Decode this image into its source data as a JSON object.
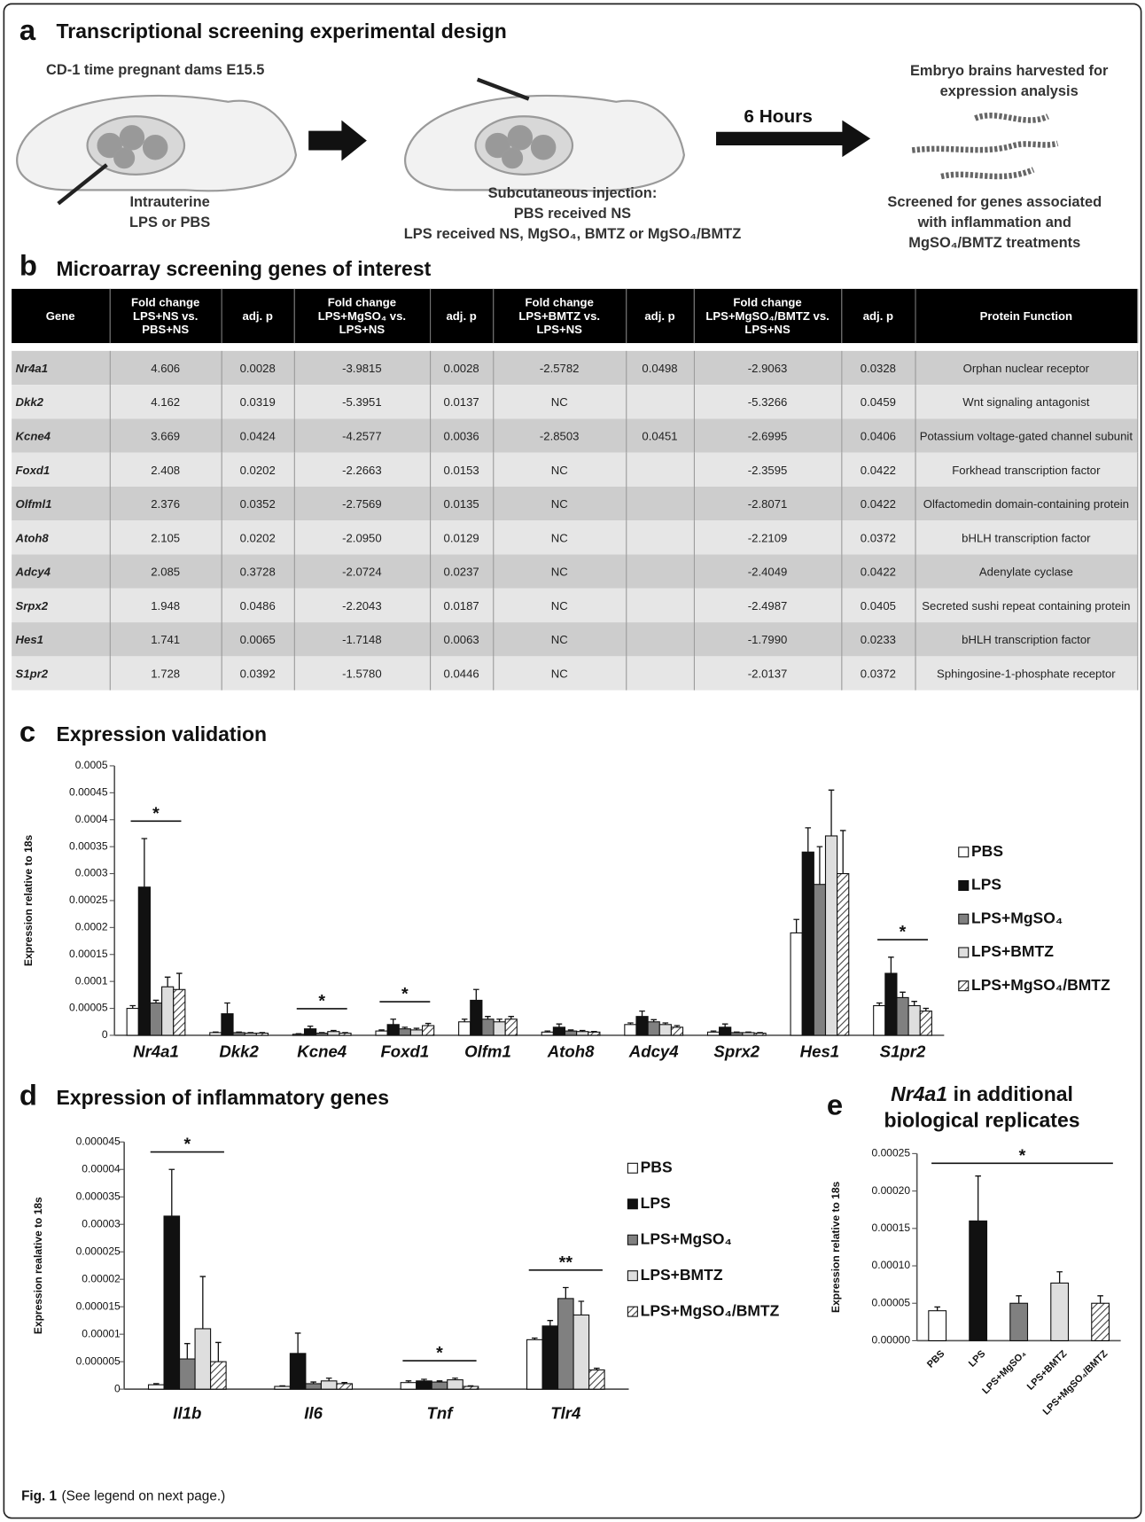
{
  "figure": {
    "panel_a": {
      "label": "a",
      "title": "Transcriptional screening experimental design",
      "dams": "CD-1 time pregnant dams E15.5",
      "route": [
        "Intrauterine",
        "LPS or PBS"
      ],
      "injection": [
        "Subcutaneous injection:",
        "PBS received NS",
        "LPS received NS, MgSO₄, BMTZ or MgSO₄/BMTZ"
      ],
      "interval": "6 Hours",
      "harvest": [
        "Embryo brains harvested for",
        "expression analysis"
      ],
      "screen": [
        "Screened for genes associated",
        "with inflammation and",
        "MgSO₄/BMTZ treatments"
      ]
    },
    "panel_b": {
      "label": "b",
      "title": "Microarray screening genes of interest",
      "table": {
        "header": [
          "Gene",
          "Fold change LPS+NS vs. PBS+NS",
          "adj. p",
          "Fold change LPS+MgSO₄ vs. LPS+NS",
          "adj. p",
          "Fold change LPS+BMTZ vs. LPS+NS",
          "adj. p",
          "Fold change LPS+MgSO₄/BMTZ vs. LPS+NS",
          "adj. p",
          "Protein Function"
        ],
        "rows": [
          [
            "Nr4a1",
            "4.606",
            "0.0028",
            "-3.9815",
            "0.0028",
            "-2.5782",
            "0.0498",
            "-2.9063",
            "0.0328",
            "Orphan nuclear receptor"
          ],
          [
            "Dkk2",
            "4.162",
            "0.0319",
            "-5.3951",
            "0.0137",
            "NC",
            null,
            "-5.3266",
            "0.0459",
            "Wnt signaling antagonist"
          ],
          [
            "Kcne4",
            "3.669",
            "0.0424",
            "-4.2577",
            "0.0036",
            "-2.8503",
            "0.0451",
            "-2.6995",
            "0.0406",
            "Potassium voltage-gated channel subunit"
          ],
          [
            "Foxd1",
            "2.408",
            "0.0202",
            "-2.2663",
            "0.0153",
            "NC",
            null,
            "-2.3595",
            "0.0422",
            "Forkhead transcription factor"
          ],
          [
            "Olfml1",
            "2.376",
            "0.0352",
            "-2.7569",
            "0.0135",
            "NC",
            null,
            "-2.8071",
            "0.0422",
            "Olfactomedin domain-containing protein"
          ],
          [
            "Atoh8",
            "2.105",
            "0.0202",
            "-2.0950",
            "0.0129",
            "NC",
            null,
            "-2.2109",
            "0.0372",
            "bHLH transcription factor"
          ],
          [
            "Adcy4",
            "2.085",
            "0.3728",
            "-2.0724",
            "0.0237",
            "NC",
            null,
            "-2.4049",
            "0.0422",
            "Adenylate cyclase"
          ],
          [
            "Srpx2",
            "1.948",
            "0.0486",
            "-2.2043",
            "0.0187",
            "NC",
            null,
            "-2.4987",
            "0.0405",
            "Secreted sushi repeat containing protein"
          ],
          [
            "Hes1",
            "1.741",
            "0.0065",
            "-1.7148",
            "0.0063",
            "NC",
            null,
            "-1.7990",
            "0.0233",
            "bHLH transcription factor"
          ],
          [
            "S1pr2",
            "1.728",
            "0.0392",
            "-1.5780",
            "0.0446",
            "NC",
            null,
            "-2.0137",
            "0.0372",
            "Sphingosine-1-phosphate  receptor"
          ]
        ]
      }
    },
    "caption": {
      "label": "Fig. 1",
      "text": "(See legend on next page.)"
    }
  },
  "chart_data": [
    {
      "panel": "c",
      "type": "bar",
      "title": "Expression validation",
      "y_label": "Expression relative to 18s",
      "categories": [
        "Nr4a1",
        "Dkk2",
        "Kcne4",
        "Foxd1",
        "Olfm1",
        "Atoh8",
        "Adcy4",
        "Sprx2",
        "Hes1",
        "S1pr2"
      ],
      "series": [
        {
          "name": "PBS",
          "color": "#ffffff",
          "values": [
            5e-05,
            5e-06,
            2e-06,
            8e-06,
            2.5e-05,
            6e-06,
            2e-05,
            6e-06,
            0.00019,
            5.5e-05
          ],
          "errors": [
            5e-06,
            1e-06,
            1e-06,
            2e-06,
            5e-06,
            2e-06,
            3e-06,
            2e-06,
            2.5e-05,
            5e-06
          ]
        },
        {
          "name": "LPS",
          "color": "#111111",
          "values": [
            0.000275,
            4e-05,
            1.2e-05,
            2e-05,
            6.5e-05,
            1.5e-05,
            3.5e-05,
            1.5e-05,
            0.00034,
            0.000115
          ],
          "errors": [
            9e-05,
            2e-05,
            5e-06,
            1e-05,
            2e-05,
            6e-06,
            1e-05,
            6e-06,
            4.5e-05,
            3e-05
          ]
        },
        {
          "name": "LPS+MgSO₄",
          "color": "#808080",
          "values": [
            6e-05,
            5e-06,
            4e-06,
            1.2e-05,
            3e-05,
            8e-06,
            2.5e-05,
            5e-06,
            0.00028,
            7e-05
          ],
          "errors": [
            5e-06,
            1e-06,
            1e-06,
            3e-06,
            5e-06,
            2e-06,
            4e-06,
            1e-06,
            7e-05,
            1e-05
          ]
        },
        {
          "name": "LPS+BMTZ",
          "color": "#dedede",
          "values": [
            9e-05,
            4e-06,
            7e-06,
            1e-05,
            2.5e-05,
            7e-06,
            2e-05,
            5e-06,
            0.00037,
            5.5e-05
          ],
          "errors": [
            1.8e-05,
            1e-06,
            2e-06,
            3e-06,
            5e-06,
            2e-06,
            3e-06,
            1e-06,
            8.5e-05,
            8e-06
          ]
        },
        {
          "name": "LPS+MgSO₄/BMTZ",
          "color": "#ffffff",
          "hatched": true,
          "values": [
            8.5e-05,
            4e-06,
            4e-06,
            1.8e-05,
            3e-05,
            6e-06,
            1.5e-05,
            4e-06,
            0.0003,
            4.5e-05
          ],
          "errors": [
            3e-05,
            1e-06,
            1e-06,
            4e-06,
            5e-06,
            1e-06,
            3e-06,
            1e-06,
            8e-05,
            5e-06
          ]
        }
      ],
      "ylim": [
        0,
        0.0005
      ],
      "yticks": [
        0,
        5e-05,
        0.0001,
        0.00015,
        0.0002,
        0.00025,
        0.0003,
        0.00035,
        0.0004,
        0.00045,
        0.0005
      ],
      "legend": "right",
      "significance": [
        {
          "text": "*",
          "category": "Nr4a1"
        },
        {
          "text": "*",
          "category": "Kcne4"
        },
        {
          "text": "*",
          "category": "Foxd1"
        },
        {
          "text": "*",
          "category": "S1pr2"
        }
      ]
    },
    {
      "panel": "d",
      "type": "bar",
      "title": "Expression of inflammatory genes",
      "y_label": "Expression realative to 18s",
      "categories": [
        "Il1b",
        "Il6",
        "Tnf",
        "Tlr4"
      ],
      "series": [
        {
          "name": "PBS",
          "color": "#ffffff",
          "values": [
            8e-07,
            5e-07,
            1.2e-06,
            9e-06
          ],
          "errors": [
            2e-07,
            1e-07,
            3e-07,
            3e-07
          ]
        },
        {
          "name": "LPS",
          "color": "#111111",
          "values": [
            3.15e-05,
            6.5e-06,
            1.5e-06,
            1.15e-05
          ],
          "errors": [
            8.5e-06,
            3.7e-06,
            3e-07,
            1e-06
          ]
        },
        {
          "name": "LPS+MgSO₄",
          "color": "#808080",
          "values": [
            5.5e-06,
            1e-06,
            1.3e-06,
            1.65e-05
          ],
          "errors": [
            2.8e-06,
            3e-07,
            2e-07,
            2e-06
          ]
        },
        {
          "name": "LPS+BMTZ",
          "color": "#dedede",
          "values": [
            1.1e-05,
            1.5e-06,
            1.7e-06,
            1.35e-05
          ],
          "errors": [
            9.5e-06,
            5e-07,
            3e-07,
            2.5e-06
          ]
        },
        {
          "name": "LPS+MgSO₄/BMTZ",
          "color": "#ffffff",
          "hatched": true,
          "values": [
            5e-06,
            1e-06,
            5e-07,
            3.5e-06
          ],
          "errors": [
            3.5e-06,
            2e-07,
            1e-07,
            3e-07
          ]
        }
      ],
      "ylim": [
        0,
        4.5e-05
      ],
      "yticks": [
        0,
        5e-06,
        1e-05,
        1.5e-05,
        2e-05,
        2.5e-05,
        3e-05,
        3.5e-05,
        4e-05,
        4.5e-05
      ],
      "legend": "right",
      "significance": [
        {
          "text": "*",
          "category": "Il1b"
        },
        {
          "text": "*",
          "category": "Tnf"
        },
        {
          "text": "**",
          "category": "Tlr4"
        }
      ]
    },
    {
      "panel": "e",
      "type": "bar",
      "title": [
        "Nr4a1",
        "in additional",
        "biological replicates"
      ],
      "y_label": "Expression relative to 18s",
      "categories": [
        "PBS",
        "LPS",
        "LPS+MgSO₄",
        "LPS+BMTZ",
        "LPS+MgSO₄/BMTZ"
      ],
      "values": [
        4e-05,
        0.00016,
        5e-05,
        7.7e-05,
        5e-05
      ],
      "errors": [
        5e-06,
        6e-05,
        1e-05,
        1.5e-05,
        1e-05
      ],
      "colors": [
        "#ffffff",
        "#111111",
        "#808080",
        "#dedede",
        "#ffffff"
      ],
      "hatched": [
        false,
        false,
        false,
        false,
        true
      ],
      "ylim": [
        0,
        0.00025
      ],
      "yticks": [
        {
          "value": 0,
          "label": "0.00000"
        },
        5e-05,
        {
          "value": 0.0001,
          "label": "0.00010"
        },
        0.00015,
        {
          "value": 0.0002,
          "label": "0.00020"
        },
        0.00025
      ],
      "significance": [
        {
          "text": "*"
        }
      ]
    }
  ]
}
